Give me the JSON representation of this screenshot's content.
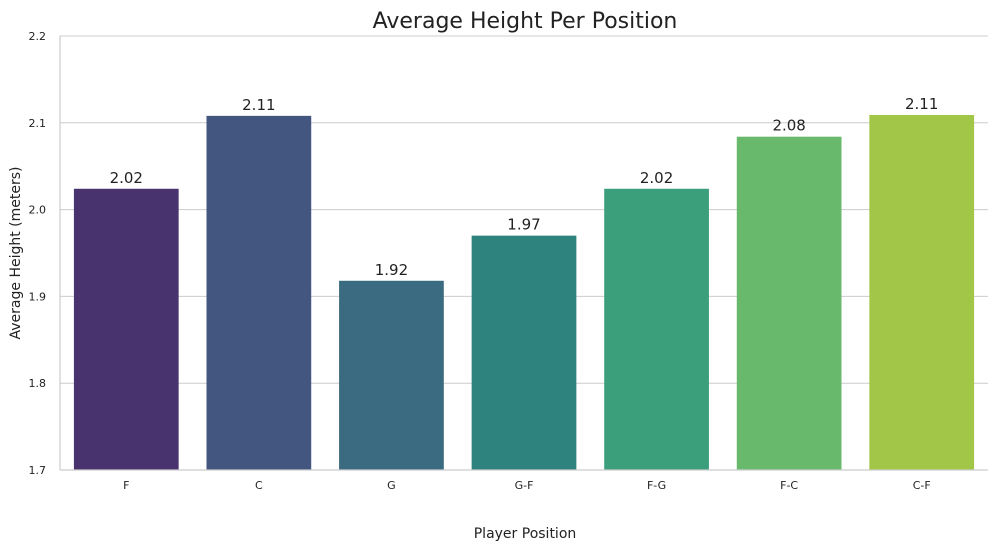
{
  "chart_data": {
    "type": "bar",
    "title": "Average Height Per Position",
    "xlabel": "Player Position",
    "ylabel": "Average Height (meters)",
    "categories": [
      "F",
      "C",
      "G",
      "G-F",
      "F-G",
      "F-C",
      "C-F"
    ],
    "values": [
      2.024,
      2.108,
      1.918,
      1.97,
      2.024,
      2.084,
      2.109
    ],
    "value_labels": [
      "2.02",
      "2.11",
      "1.92",
      "1.97",
      "2.02",
      "2.08",
      "2.11"
    ],
    "ylim": [
      1.7,
      2.2
    ],
    "yticks": [
      "1.7",
      "1.8",
      "1.9",
      "2.0",
      "2.1",
      "2.2"
    ],
    "grid": "horizontal",
    "colors": [
      "#48336f",
      "#43567f",
      "#3a6b81",
      "#2e837f",
      "#3b9f7c",
      "#69b96c",
      "#a2c647"
    ]
  }
}
